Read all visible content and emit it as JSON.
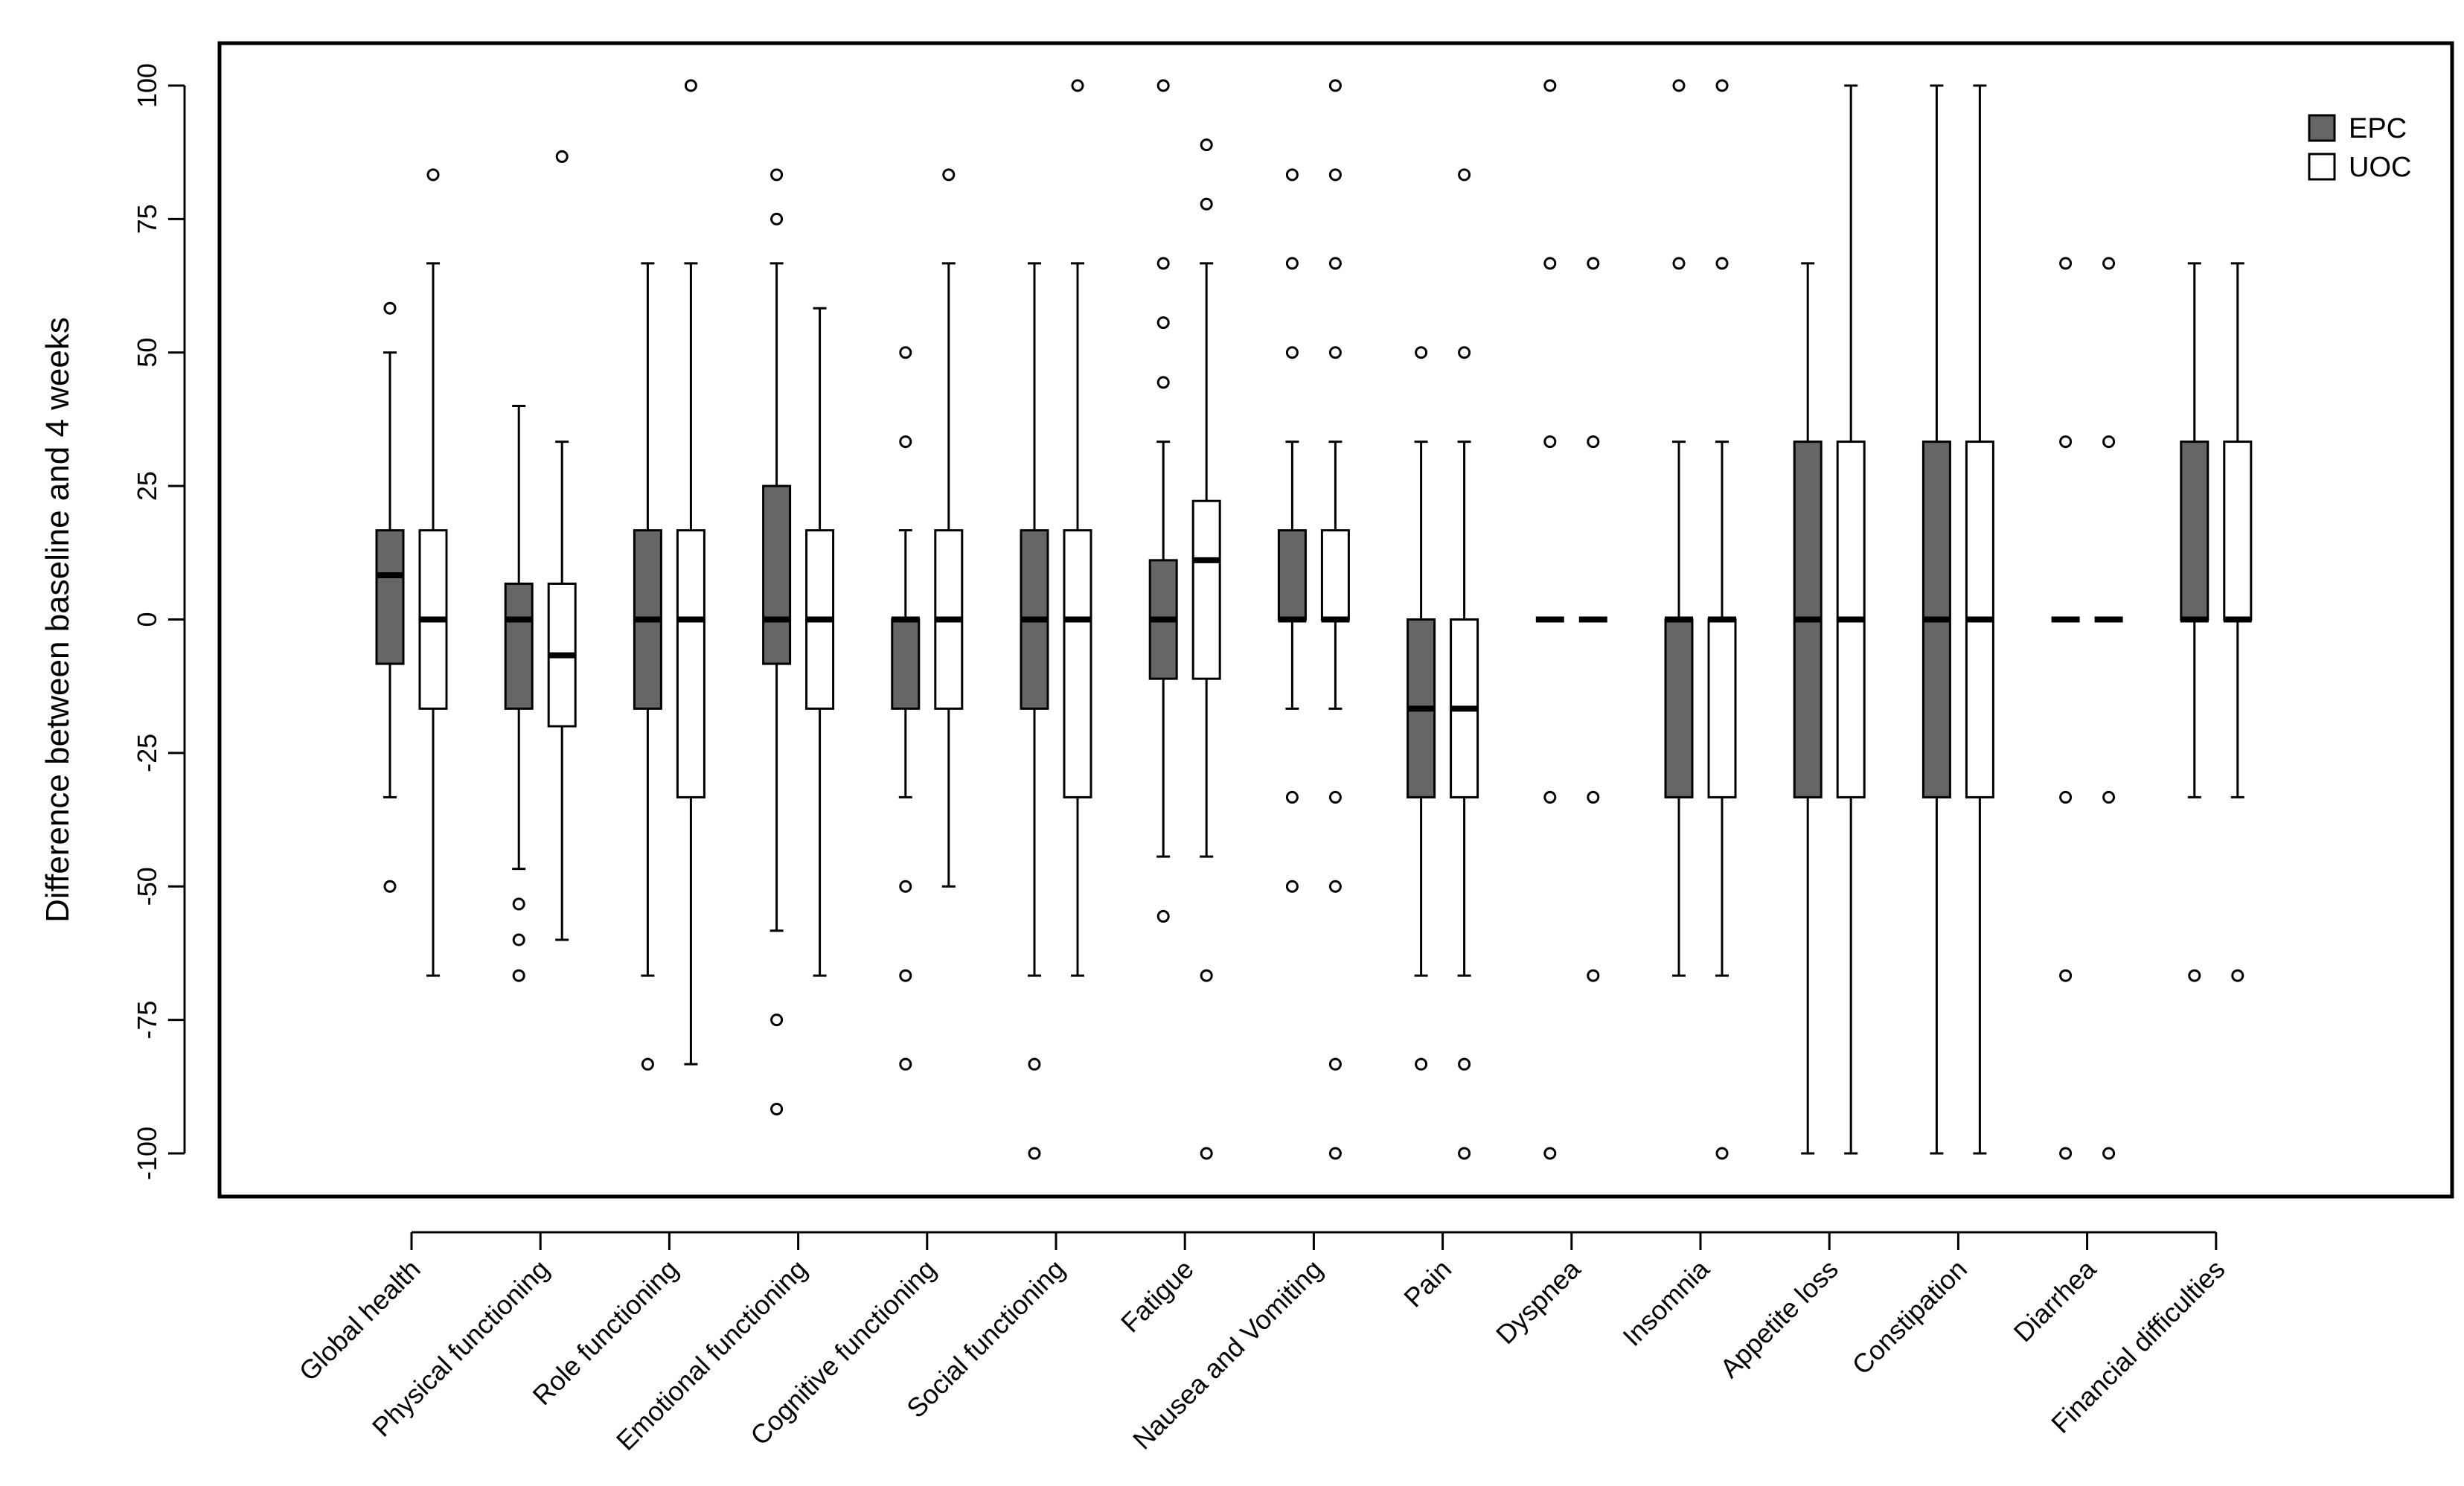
{
  "chart_data": {
    "type": "boxplot",
    "title": "",
    "xlabel": "",
    "ylabel": "Difference between baseline and 4 weeks",
    "ylim": [
      -100,
      100
    ],
    "yticks": [
      100,
      75,
      50,
      25,
      0,
      -25,
      -50,
      -75,
      -100
    ],
    "grid": false,
    "legend_position": "top-right",
    "series": [
      {
        "name": "EPC",
        "color": "#666666"
      },
      {
        "name": "UOC",
        "color": "#ffffff"
      }
    ],
    "categories": [
      {
        "label": "Global health",
        "EPC": {
          "whisker_low": -33.3,
          "q1": -8.3,
          "median": 8.3,
          "q3": 16.7,
          "whisker_high": 50,
          "outliers": [
            58.3,
            -50
          ]
        },
        "UOC": {
          "whisker_low": -66.7,
          "q1": -16.7,
          "median": 0,
          "q3": 16.7,
          "whisker_high": 66.7,
          "outliers": [
            83.3
          ]
        }
      },
      {
        "label": "Physical functioning",
        "EPC": {
          "whisker_low": -46.7,
          "q1": -16.7,
          "median": 0,
          "q3": 6.7,
          "whisker_high": 40,
          "outliers": [
            -53.3,
            -60,
            -66.7
          ]
        },
        "UOC": {
          "whisker_low": -60,
          "q1": -20,
          "median": -6.7,
          "q3": 6.7,
          "whisker_high": 33.3,
          "outliers": [
            86.7
          ]
        }
      },
      {
        "label": "Role functioning",
        "EPC": {
          "whisker_low": -66.7,
          "q1": -16.7,
          "median": 0,
          "q3": 16.7,
          "whisker_high": 66.7,
          "outliers": [
            -83.3
          ]
        },
        "UOC": {
          "whisker_low": -83.3,
          "q1": -33.3,
          "median": 0,
          "q3": 16.7,
          "whisker_high": 66.7,
          "outliers": [
            100
          ]
        }
      },
      {
        "label": "Emotional functioning",
        "EPC": {
          "whisker_low": -58.3,
          "q1": -8.3,
          "median": 0,
          "q3": 25,
          "whisker_high": 66.7,
          "outliers": [
            83.3,
            75,
            -75,
            -91.7
          ]
        },
        "UOC": {
          "whisker_low": -66.7,
          "q1": -16.7,
          "median": 0,
          "q3": 16.7,
          "whisker_high": 58.3,
          "outliers": []
        }
      },
      {
        "label": "Cognitive functioning",
        "EPC": {
          "whisker_low": -33.3,
          "q1": -16.7,
          "median": 0,
          "q3": 0,
          "whisker_high": 16.7,
          "outliers": [
            50,
            33.3,
            -50,
            -66.7,
            -83.3
          ]
        },
        "UOC": {
          "whisker_low": -50,
          "q1": -16.7,
          "median": 0,
          "q3": 16.7,
          "whisker_high": 66.7,
          "outliers": [
            83.3
          ]
        }
      },
      {
        "label": "Social functioning",
        "EPC": {
          "whisker_low": -66.7,
          "q1": -16.7,
          "median": 0,
          "q3": 16.7,
          "whisker_high": 66.7,
          "outliers": [
            -83.3,
            -100
          ]
        },
        "UOC": {
          "whisker_low": -66.7,
          "q1": -33.3,
          "median": 0,
          "q3": 16.7,
          "whisker_high": 66.7,
          "outliers": [
            100
          ]
        }
      },
      {
        "label": "Fatigue",
        "EPC": {
          "whisker_low": -44.4,
          "q1": -11.1,
          "median": 0,
          "q3": 11.1,
          "whisker_high": 33.3,
          "outliers": [
            100,
            66.7,
            55.6,
            44.4,
            -55.6
          ]
        },
        "UOC": {
          "whisker_low": -44.4,
          "q1": -11.1,
          "median": 11.1,
          "q3": 22.2,
          "whisker_high": 66.7,
          "outliers": [
            88.9,
            77.8,
            -66.7,
            -100
          ]
        }
      },
      {
        "label": "Nausea and Vomiting",
        "EPC": {
          "whisker_low": -16.7,
          "q1": 0,
          "median": 0,
          "q3": 16.7,
          "whisker_high": 33.3,
          "outliers": [
            83.3,
            66.7,
            50,
            -33.3,
            -50
          ]
        },
        "UOC": {
          "whisker_low": -16.7,
          "q1": 0,
          "median": 0,
          "q3": 16.7,
          "whisker_high": 33.3,
          "outliers": [
            100,
            83.3,
            66.7,
            50,
            -33.3,
            -50,
            -83.3,
            -100
          ]
        }
      },
      {
        "label": "Pain",
        "EPC": {
          "whisker_low": -66.7,
          "q1": -33.3,
          "median": -16.7,
          "q3": 0,
          "whisker_high": 33.3,
          "outliers": [
            50,
            -83.3
          ]
        },
        "UOC": {
          "whisker_low": -66.7,
          "q1": -33.3,
          "median": -16.7,
          "q3": 0,
          "whisker_high": 33.3,
          "outliers": [
            83.3,
            50,
            -83.3,
            -100
          ]
        }
      },
      {
        "label": "Dyspnea",
        "EPC": {
          "whisker_low": 0,
          "q1": 0,
          "median": 0,
          "q3": 0,
          "whisker_high": 0,
          "outliers": [
            100,
            66.7,
            33.3,
            -33.3,
            -100
          ]
        },
        "UOC": {
          "whisker_low": 0,
          "q1": 0,
          "median": 0,
          "q3": 0,
          "whisker_high": 0,
          "outliers": [
            66.7,
            33.3,
            -33.3,
            -66.7
          ]
        }
      },
      {
        "label": "Insomnia",
        "EPC": {
          "whisker_low": -66.7,
          "q1": -33.3,
          "median": 0,
          "q3": 0,
          "whisker_high": 33.3,
          "outliers": [
            100,
            66.7
          ]
        },
        "UOC": {
          "whisker_low": -66.7,
          "q1": -33.3,
          "median": 0,
          "q3": 0,
          "whisker_high": 33.3,
          "outliers": [
            100,
            66.7,
            -100
          ]
        }
      },
      {
        "label": "Appetite loss",
        "EPC": {
          "whisker_low": -100,
          "q1": -33.3,
          "median": 0,
          "q3": 33.3,
          "whisker_high": 66.7,
          "outliers": []
        },
        "UOC": {
          "whisker_low": -100,
          "q1": -33.3,
          "median": 0,
          "q3": 33.3,
          "whisker_high": 100,
          "outliers": []
        }
      },
      {
        "label": "Constipation",
        "EPC": {
          "whisker_low": -100,
          "q1": -33.3,
          "median": 0,
          "q3": 33.3,
          "whisker_high": 100,
          "outliers": []
        },
        "UOC": {
          "whisker_low": -100,
          "q1": -33.3,
          "median": 0,
          "q3": 33.3,
          "whisker_high": 100,
          "outliers": []
        }
      },
      {
        "label": "Diarrhea",
        "EPC": {
          "whisker_low": 0,
          "q1": 0,
          "median": 0,
          "q3": 0,
          "whisker_high": 0,
          "outliers": [
            66.7,
            33.3,
            -33.3,
            -66.7,
            -100
          ]
        },
        "UOC": {
          "whisker_low": 0,
          "q1": 0,
          "median": 0,
          "q3": 0,
          "whisker_high": 0,
          "outliers": [
            66.7,
            33.3,
            -33.3,
            -100
          ]
        }
      },
      {
        "label": "Financial difficulties",
        "EPC": {
          "whisker_low": -33.3,
          "q1": 0,
          "median": 0,
          "q3": 33.3,
          "whisker_high": 66.7,
          "outliers": [
            -66.7
          ]
        },
        "UOC": {
          "whisker_low": -33.3,
          "q1": 0,
          "median": 0,
          "q3": 33.3,
          "whisker_high": 66.7,
          "outliers": [
            -66.7
          ]
        }
      }
    ]
  }
}
